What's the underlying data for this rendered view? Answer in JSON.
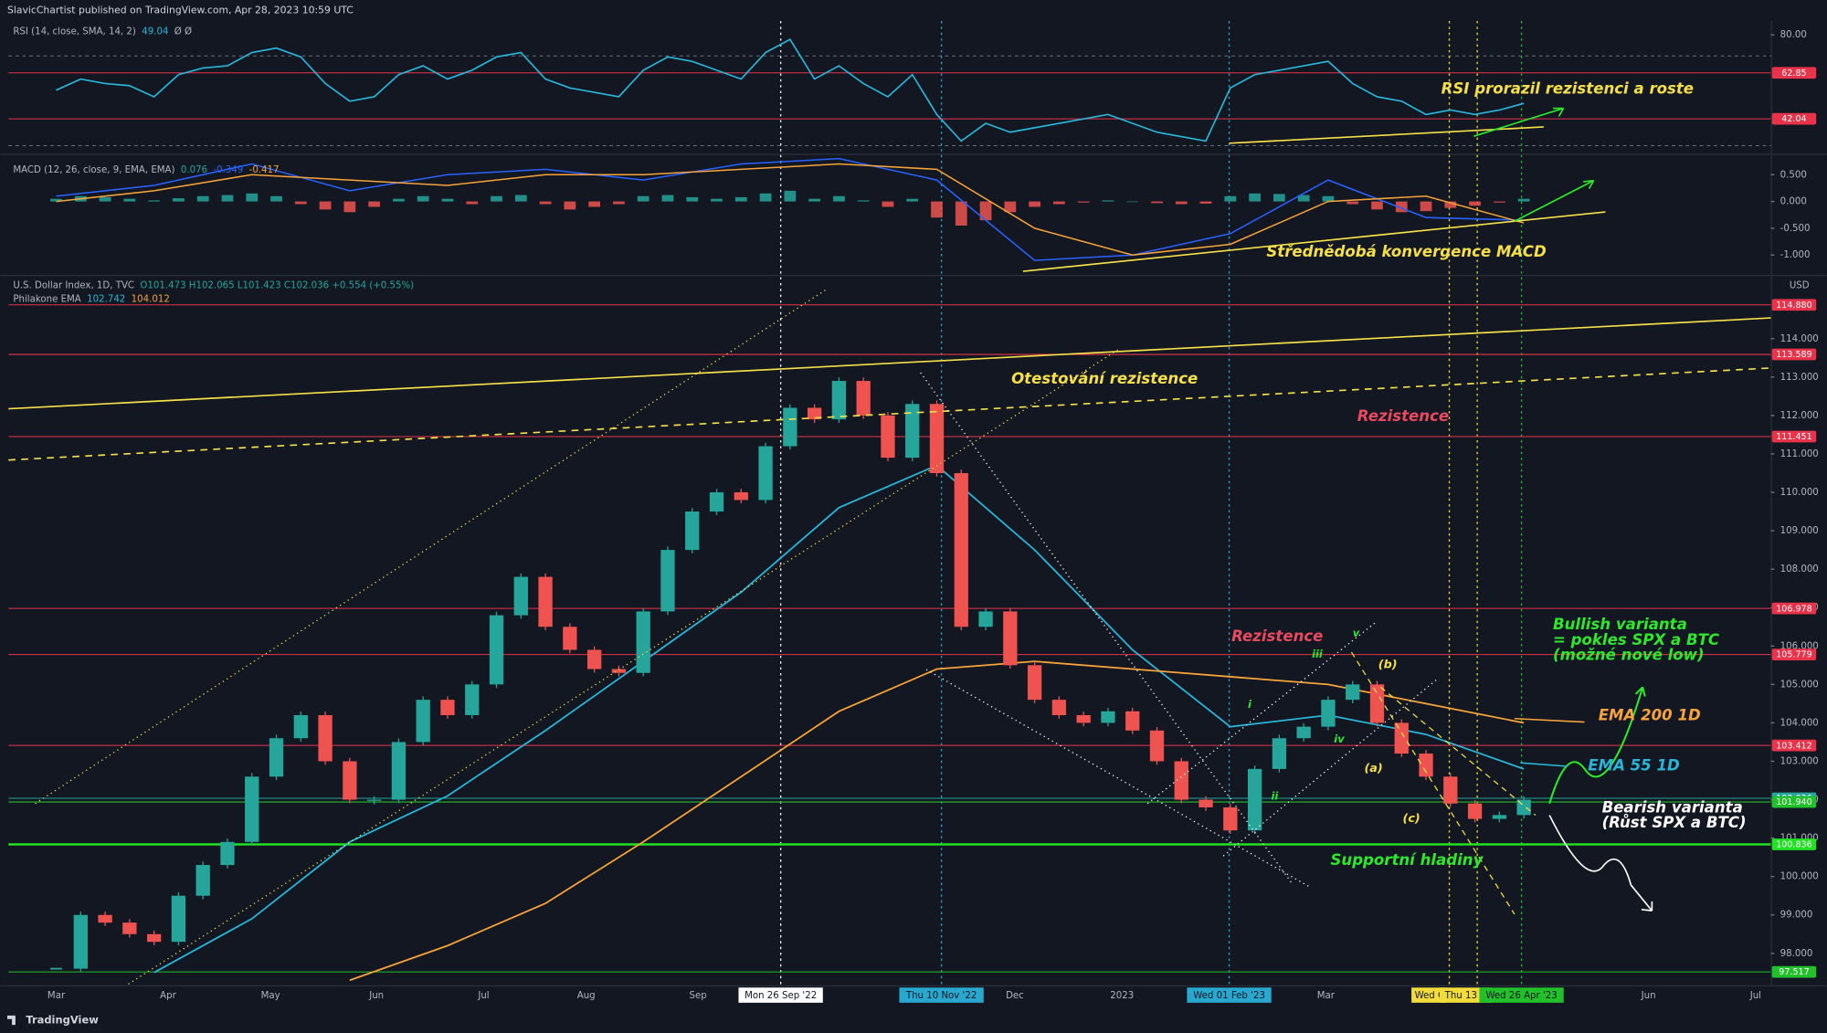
{
  "header": {
    "publisher": "SlavicChartist published on TradingView.com, Apr 28, 2023 10:59 UTC",
    "footer": "TradingView"
  },
  "x_axis_labels": [
    {
      "text": "Mar"
    },
    {
      "text": "Apr"
    },
    {
      "text": "May"
    },
    {
      "text": "Jun"
    },
    {
      "text": "Jul"
    },
    {
      "text": "Aug"
    },
    {
      "text": "Sep"
    },
    {
      "text": "Mon 26 Sep '22",
      "highlight": "#ffffff"
    },
    {
      "text": "Thu 10 Nov '22",
      "highlight": "#29a8cf"
    },
    {
      "text": "Dec"
    },
    {
      "text": "2023"
    },
    {
      "text": "Wed 01 Feb '23",
      "highlight": "#29a8cf"
    },
    {
      "text": "Mar"
    },
    {
      "text": "Wed C",
      "highlight": "#f2dc3c"
    },
    {
      "text": "Thu 13 A",
      "highlight": "#f2dc3c"
    },
    {
      "text": "Wed 26 Apr '23",
      "highlight": "#22c02a"
    },
    {
      "text": "Jun"
    },
    {
      "text": "Jul"
    }
  ],
  "annotations": [
    {
      "text": "RSI prorazil rezistenci a roste",
      "color": "#f5e04a"
    },
    {
      "text": "Střednědobá konvergence MACD",
      "color": "#f5e04a"
    },
    {
      "text": "Otestování rezistence",
      "color": "#f5e04a"
    },
    {
      "text": "Rezistence",
      "color": "#e84a5f"
    },
    {
      "text": "Rezistence",
      "color": "#e84a5f"
    },
    {
      "text": "Bullish varianta",
      "color": "#2ee82e"
    },
    {
      "text": "= pokles SPX a BTC",
      "color": "#2ee82e"
    },
    {
      "text": "(možné nové low)",
      "color": "#2ee82e"
    },
    {
      "text": "EMA 200 1D",
      "color": "#f7a33b"
    },
    {
      "text": "EMA 55 1D",
      "color": "#29b6d9"
    },
    {
      "text": "Bearish varianta",
      "color": "#ffffff"
    },
    {
      "text": "(Růst SPX a BTC)",
      "color": "#ffffff"
    },
    {
      "text": "Supportní hladiny",
      "color": "#2ee82e"
    },
    {
      "text": "(a)",
      "color": "#f5e04a"
    },
    {
      "text": "(b)",
      "color": "#f5e04a"
    },
    {
      "text": "(c)",
      "color": "#f5e04a"
    },
    {
      "text": "i",
      "color": "#2ee82e"
    },
    {
      "text": "ii",
      "color": "#2ee82e"
    },
    {
      "text": "iii",
      "color": "#2ee82e"
    },
    {
      "text": "iv",
      "color": "#2ee82e"
    },
    {
      "text": "v",
      "color": "#2ee82e"
    }
  ],
  "chart_data": [
    {
      "type": "line",
      "legend": [
        {
          "text": "RSI (14, close, SMA, 14, 2)",
          "color": "#b2b5be"
        },
        {
          "text": "49.04",
          "color": "#29b6d9"
        },
        {
          "text": "Ø Ø",
          "color": "#b2b5be"
        }
      ],
      "color": "#29b6d9",
      "ylim": [
        27.3,
        86.3
      ],
      "yticks": [
        {
          "value": 80,
          "label": "80.00"
        }
      ],
      "levels": [
        {
          "value": 62.85,
          "label": "62.85",
          "color": "#e8334a"
        },
        {
          "value": 42.04,
          "label": "42.04",
          "color": "#e8334a"
        }
      ],
      "values": [
        55,
        60,
        58,
        57,
        52,
        62,
        65,
        66,
        72,
        74,
        70,
        58,
        50,
        52,
        62,
        66,
        60,
        64,
        70,
        72,
        60,
        56,
        54,
        52,
        64,
        70,
        68,
        64,
        60,
        72,
        78,
        60,
        66,
        58,
        52,
        62,
        44,
        32,
        40,
        36,
        38,
        40,
        42,
        44,
        40,
        36,
        34,
        32,
        56,
        62,
        64,
        66,
        68,
        58,
        52,
        50,
        44,
        46,
        44,
        46,
        49
      ]
    },
    {
      "type": "bar",
      "legend": [
        {
          "text": "MACD (12, 26, close, 9, EMA, EMA)",
          "color": "#b2b5be"
        },
        {
          "text": "0.076",
          "color": "#26a69a"
        },
        {
          "text": "-0.349",
          "color": "#2962ff"
        },
        {
          "text": "-0.417",
          "color": "#f7a33b"
        }
      ],
      "up_color": "#26a69a",
      "down_color": "#ef5350",
      "ylim": [
        -1.348,
        0.826
      ],
      "yticks": [
        {
          "value": 0.5,
          "label": "0.500"
        },
        {
          "value": 0,
          "label": "0.000"
        },
        {
          "value": -0.5,
          "label": "-0.500"
        },
        {
          "value": -1,
          "label": "-1.000"
        }
      ],
      "values": [
        0.05,
        0.1,
        0.08,
        0.05,
        0.02,
        0.06,
        0.1,
        0.12,
        0.15,
        0.1,
        -0.05,
        -0.15,
        -0.2,
        -0.1,
        0.05,
        0.1,
        0.05,
        -0.05,
        0.1,
        0.12,
        -0.05,
        -0.15,
        -0.1,
        -0.05,
        0.1,
        0.12,
        0.08,
        0.05,
        0.08,
        0.15,
        0.2,
        0.05,
        0.1,
        0.02,
        -0.1,
        0.05,
        -0.3,
        -0.45,
        -0.35,
        -0.2,
        -0.1,
        -0.05,
        -0.02,
        0.02,
        0,
        -0.03,
        -0.05,
        -0.04,
        0.1,
        0.15,
        0.14,
        0.12,
        0.1,
        -0.05,
        -0.15,
        -0.2,
        -0.18,
        -0.12,
        -0.08,
        -0.02,
        0.05
      ],
      "lines": [
        {
          "color": "#2962ff",
          "values": [
            0.1,
            0.3,
            0.7,
            0.2,
            0.5,
            0.6,
            0.4,
            0.7,
            0.8,
            0.4,
            -1.1,
            -1.0,
            -0.6,
            0.4,
            -0.3,
            -0.35
          ]
        },
        {
          "color": "#f7a33b",
          "values": [
            0,
            0.2,
            0.5,
            0.4,
            0.3,
            0.5,
            0.5,
            0.6,
            0.7,
            0.6,
            -0.5,
            -1.0,
            -0.8,
            0,
            0.1,
            -0.4
          ]
        }
      ]
    },
    {
      "type": "candlestick",
      "unit": "USD",
      "legend": [
        {
          "text": "U.S. Dollar Index, 1D, TVC",
          "color": "#b2b5be"
        },
        {
          "text": "O101.473 H102.065 L101.423 C102.036 +0.554 (+0.55%)",
          "color": "#26a69a"
        }
      ],
      "legend2": [
        {
          "text": "Philakone EMA",
          "color": "#b2b5be"
        },
        {
          "text": "102.742",
          "color": "#29b6d9"
        },
        {
          "text": "104.012",
          "color": "#f7a33b"
        }
      ],
      "up_color": "#26a69a",
      "down_color": "#ef5350",
      "ylim": [
        97.2,
        115.6
      ],
      "yticks": [
        {
          "value": 98,
          "label": "98.000"
        },
        {
          "value": 99,
          "label": "99.000"
        },
        {
          "value": 100,
          "label": "100.000"
        },
        {
          "value": 101,
          "label": "101.000"
        },
        {
          "value": 102,
          "label": "102.000"
        },
        {
          "value": 103,
          "label": "103.000"
        },
        {
          "value": 104,
          "label": "104.000"
        },
        {
          "value": 105,
          "label": "105.000"
        },
        {
          "value": 106,
          "label": "106.000"
        },
        {
          "value": 107,
          "label": "107.000"
        },
        {
          "value": 108,
          "label": "108.000"
        },
        {
          "value": 109,
          "label": "109.000"
        },
        {
          "value": 110,
          "label": "110.000"
        },
        {
          "value": 111,
          "label": "111.000"
        },
        {
          "value": 112,
          "label": "112.000"
        },
        {
          "value": 113,
          "label": "113.000"
        },
        {
          "value": 114,
          "label": "114.000"
        }
      ],
      "levels": [
        {
          "value": 114.88,
          "label": "114.880",
          "color": "#e8334a"
        },
        {
          "value": 113.589,
          "label": "113.589",
          "color": "#e8334a"
        },
        {
          "value": 111.451,
          "label": "111.451",
          "color": "#e8334a"
        },
        {
          "value": 106.978,
          "label": "106.978",
          "color": "#e8334a"
        },
        {
          "value": 105.779,
          "label": "105.779",
          "color": "#e8334a"
        },
        {
          "value": 103.412,
          "label": "103.412",
          "color": "#e8334a"
        },
        {
          "value": 102.036,
          "label": "102.036",
          "color": "#26a69a"
        },
        {
          "value": 101.94,
          "label": "101.940",
          "color": "#22c02a"
        },
        {
          "value": 100.836,
          "label": "100.836",
          "color": "#22e022"
        },
        {
          "value": 97.517,
          "label": "97.517",
          "color": "#22c02a"
        }
      ],
      "values": [
        97.6,
        99,
        98.8,
        98.5,
        98.3,
        99.5,
        100.3,
        100.9,
        102.6,
        103.6,
        104.2,
        103,
        102,
        102,
        103.5,
        104.6,
        104.2,
        105,
        106.8,
        107.8,
        106.5,
        105.9,
        105.4,
        105.3,
        106.9,
        108.5,
        109.5,
        110,
        109.8,
        111.2,
        112.2,
        111.9,
        112.9,
        112,
        110.9,
        112.3,
        110.5,
        106.5,
        106.9,
        105.5,
        104.6,
        104.2,
        104,
        104.3,
        103.8,
        103,
        102,
        101.8,
        101.2,
        102.8,
        103.6,
        103.9,
        104.6,
        105,
        104,
        103.2,
        102.6,
        101.9,
        101.5,
        101.6,
        102
      ],
      "lines": [
        {
          "color": "#29b6d9",
          "values": [
            null,
            97.5,
            98.9,
            100.9,
            102.1,
            103.8,
            105.6,
            107.4,
            109.6,
            110.7,
            108.5,
            105.9,
            103.9,
            104.2,
            103.7,
            102.8
          ]
        },
        {
          "color": "#f7a33b",
          "values": [
            null,
            null,
            null,
            97.3,
            98.2,
            99.3,
            100.9,
            102.6,
            104.3,
            105.4,
            105.6,
            105.4,
            105.2,
            105,
            104.5,
            104
          ]
        }
      ]
    }
  ]
}
